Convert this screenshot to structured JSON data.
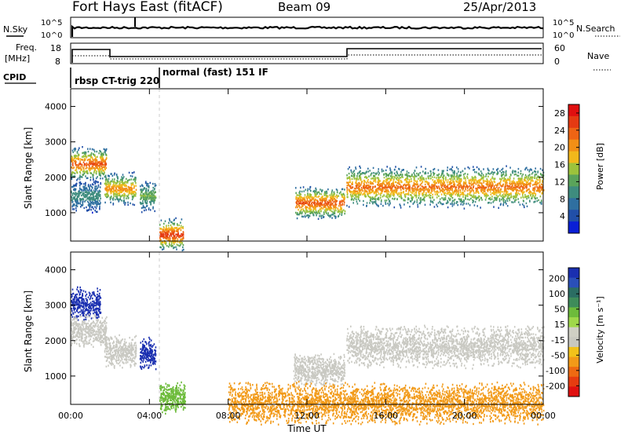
{
  "header": {
    "station": "Fort Hays East (fitACF)",
    "beam": "Beam 09",
    "date": "25/Apr/2013"
  },
  "top_panels": {
    "nsky_label": "N.Sky",
    "nsearch_label": "N.Search",
    "noise_ticks": [
      "10^5",
      "10^0"
    ],
    "freq_label": "Freq.",
    "freq_unit": "[MHz]",
    "freq_ticks": [
      "18",
      "8"
    ],
    "nave_label": "Nave",
    "nave_ticks": [
      "60",
      "0"
    ],
    "cpid_label": "CPID",
    "cpid_segments": [
      "rbsp CT-trig 220",
      "normal (fast) 151 IF"
    ]
  },
  "colors": {
    "power_scale": [
      "#0a1fd6",
      "#214fa8",
      "#2f6fa0",
      "#3e8c7e",
      "#5aa35a",
      "#9cc23c",
      "#f2b81b",
      "#f28f16",
      "#ee6414",
      "#e53a12",
      "#e01010"
    ],
    "velocity_scale": [
      "#1a2fb0",
      "#2a4fb8",
      "#2b6d63",
      "#3e8c5a",
      "#6dbb3b",
      "#9fd84a",
      "#cfcfc4",
      "#c8c8c0",
      "#f2c21a",
      "#f29a18",
      "#ee6a12",
      "#e63c10",
      "#e01010"
    ],
    "ground_scatter": "#c9c9c2"
  },
  "chart_data": [
    {
      "type": "heatmap",
      "xlabel": "",
      "ylabel": "Slant Range [km]",
      "x_ticks": [
        "00:00",
        "04:00",
        "08:00",
        "12:00",
        "16:00",
        "20:00",
        "00:00"
      ],
      "x_hours": [
        0,
        4,
        8,
        12,
        16,
        20,
        24
      ],
      "y_ticks": [
        1000,
        2000,
        3000,
        4000
      ],
      "ylim": [
        200,
        4500
      ],
      "colorbar": {
        "label": "Power [dB]",
        "ticks": [
          "4",
          "8",
          "12",
          "16",
          "20",
          "24",
          "28"
        ],
        "range": [
          0,
          30
        ]
      },
      "echo_regions": [
        {
          "t_start": 0.0,
          "t_end": 1.8,
          "range_center": 2400,
          "peak_db": 26
        },
        {
          "t_start": 0.0,
          "t_end": 1.5,
          "range_center": 1500,
          "peak_db": 10
        },
        {
          "t_start": 1.7,
          "t_end": 3.3,
          "range_center": 1700,
          "peak_db": 22
        },
        {
          "t_start": 3.5,
          "t_end": 4.3,
          "range_center": 1500,
          "peak_db": 14
        },
        {
          "t_start": 4.5,
          "t_end": 5.7,
          "range_center": 400,
          "peak_db": 28
        },
        {
          "t_start": 11.4,
          "t_end": 13.9,
          "range_center": 1300,
          "peak_db": 26
        },
        {
          "t_start": 14.0,
          "t_end": 24.0,
          "range_center": 1750,
          "peak_db": 24
        }
      ]
    },
    {
      "type": "heatmap",
      "xlabel": "Time UT",
      "ylabel": "Slant Range [km]",
      "x_ticks": [
        "00:00",
        "04:00",
        "08:00",
        "12:00",
        "16:00",
        "20:00",
        "00:00"
      ],
      "x_hours": [
        0,
        4,
        8,
        12,
        16,
        20,
        24
      ],
      "y_ticks": [
        1000,
        2000,
        3000,
        4000
      ],
      "ylim": [
        200,
        4500
      ],
      "colorbar": {
        "label": "Velocity [m s⁻¹]",
        "ticks": [
          "200",
          "100",
          "50",
          "15",
          "-15",
          "-50",
          "-100",
          "-200"
        ],
        "range": [
          -250,
          250
        ]
      },
      "echo_regions": [
        {
          "t_start": 0.0,
          "t_end": 1.5,
          "range_center": 3050,
          "velocity": 150
        },
        {
          "t_start": 0.0,
          "t_end": 1.8,
          "range_center": 2300,
          "velocity": 0
        },
        {
          "t_start": 1.7,
          "t_end": 3.3,
          "range_center": 1700,
          "velocity": 0
        },
        {
          "t_start": 3.5,
          "t_end": 4.3,
          "range_center": 1650,
          "velocity": 150
        },
        {
          "t_start": 4.5,
          "t_end": 5.8,
          "range_center": 400,
          "velocity": 40
        },
        {
          "t_start": 11.3,
          "t_end": 13.9,
          "range_center": 1200,
          "velocity": 0
        },
        {
          "t_start": 14.0,
          "t_end": 24.0,
          "range_center": 1850,
          "velocity": 0
        },
        {
          "t_start": 8.0,
          "t_end": 24.0,
          "range_center": 250,
          "velocity": -40
        }
      ]
    }
  ]
}
